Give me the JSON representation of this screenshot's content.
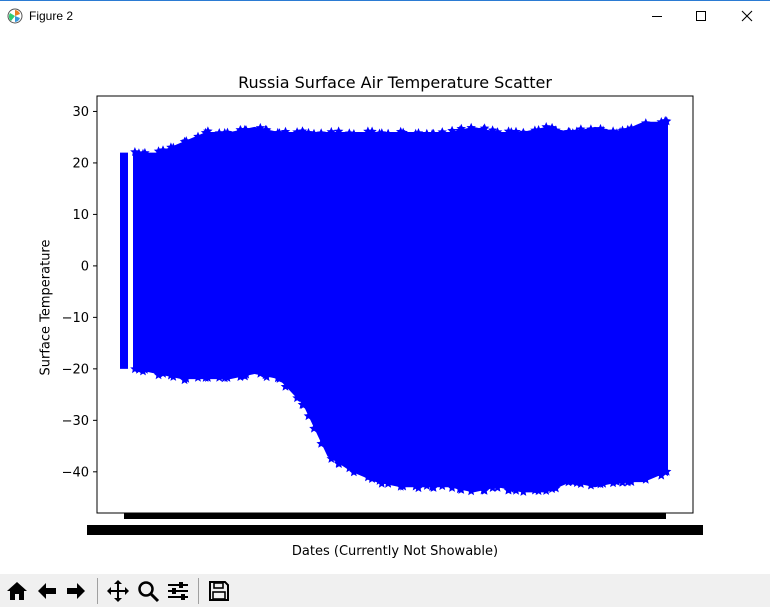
{
  "window": {
    "title": "Figure 2"
  },
  "chart_data": {
    "type": "scatter",
    "title": "Russia Surface Air Temperature Scatter",
    "xlabel": "Dates (Currently Not Showable)",
    "ylabel": "Surface Temperature",
    "marker": "star",
    "color": "#0000ff",
    "ylim": [
      -48,
      33
    ],
    "yticks": [
      30,
      20,
      10,
      0,
      -10,
      -20,
      -30,
      -40
    ],
    "ytick_labels": [
      "30",
      "20",
      "10",
      "0",
      "−10",
      "−20",
      "−30",
      "−40"
    ],
    "x_tick_labels_overlapping": true,
    "series": [
      {
        "envelope_upper": [
          22,
          22,
          24,
          26,
          26,
          27,
          26,
          26,
          26,
          26,
          26,
          26,
          26,
          26,
          27,
          26,
          26,
          27,
          26,
          27,
          26,
          28,
          28
        ],
        "envelope_lower": [
          -20,
          -21,
          -22,
          -22,
          -22,
          -21,
          -22,
          -27,
          -37,
          -40,
          -42,
          -43,
          -43,
          -43,
          -44,
          -43,
          -44,
          -44,
          -42,
          -43,
          -42,
          -42,
          -40
        ]
      }
    ]
  },
  "toolbar": {
    "buttons": [
      "home",
      "back",
      "forward",
      "pan",
      "zoom",
      "configure",
      "save"
    ]
  }
}
